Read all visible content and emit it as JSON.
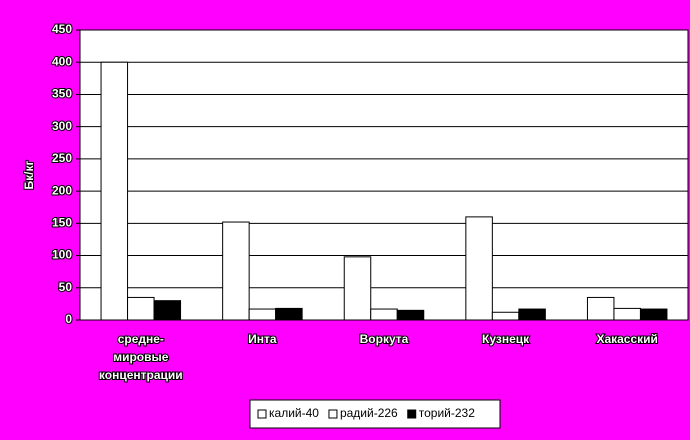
{
  "chart_data": {
    "type": "bar",
    "y_label": "Бк/кг",
    "categories": [
      "средне-мировые концентрации",
      "Инта",
      "Воркута",
      "Кузнецк",
      "Хакасский"
    ],
    "series": [
      {
        "name": "калий-40",
        "color": "#ffffff",
        "values": [
          400,
          152,
          98,
          160,
          35
        ]
      },
      {
        "name": "радий-226",
        "color": "#ffffff",
        "values": [
          35,
          17,
          17,
          12,
          18
        ]
      },
      {
        "name": "торий-232",
        "color": "#000000",
        "values": [
          30,
          18,
          15,
          17,
          17
        ]
      }
    ],
    "ylim": [
      0,
      450
    ],
    "yticks": [
      0,
      50,
      100,
      150,
      200,
      250,
      300,
      350,
      400,
      450
    ],
    "grid": true,
    "legend": "bottom"
  }
}
